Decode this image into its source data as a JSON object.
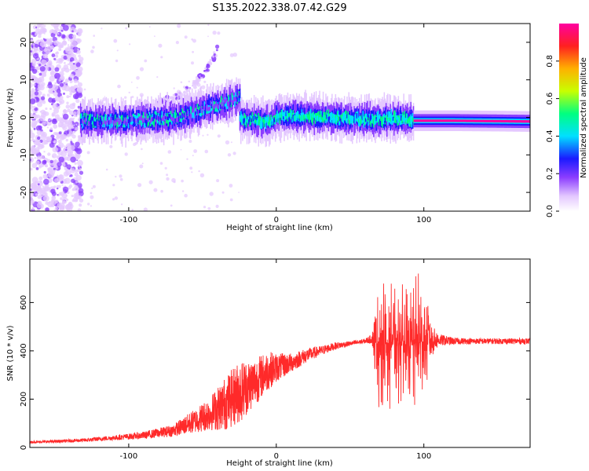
{
  "title": "S135.2022.338.07.42.G29",
  "colors": {
    "snr_line": "#ff2a2a",
    "frame": "#000000",
    "colormap": [
      "#ffffff",
      "#e4c8ff",
      "#8b3dff",
      "#1a1aff",
      "#00e0ff",
      "#00ff80",
      "#c8ff00",
      "#ffb000",
      "#ff2020",
      "#ff00a0"
    ]
  },
  "chart_data": [
    {
      "type": "heatmap",
      "panel": "top",
      "xlabel": "Height of straight line (km)",
      "ylabel": "Frequency (Hz)",
      "xlim": [
        -167,
        172
      ],
      "ylim": [
        -25,
        25
      ],
      "xticks": [
        -100,
        0,
        100
      ],
      "xtick_labels": [
        "-100",
        "0",
        "100"
      ],
      "yticks": [
        -20,
        -10,
        0,
        10,
        20
      ],
      "ytick_labels": [
        "-20",
        "-10",
        "0",
        "10",
        "20"
      ],
      "colorbar": {
        "label": "Normalized spectral amplitude",
        "range": [
          0,
          1
        ],
        "ticks": [
          0,
          0.2,
          0.4,
          0.6,
          0.8
        ],
        "tick_labels": [
          "0.0",
          "0.2",
          "0.4",
          "0.6",
          "0.8"
        ]
      },
      "ridge_segments": [
        {
          "x": [
            -133,
            -105,
            -90,
            -70,
            -55,
            -45,
            -38,
            -30,
            -25
          ],
          "y": [
            -1,
            -1,
            -0.5,
            -0.3,
            1.5,
            3,
            3.5,
            4.5,
            5.5
          ],
          "amplitude": 0.25
        },
        {
          "x": [
            -25,
            -15,
            -5,
            0,
            10,
            30,
            60,
            80,
            93
          ],
          "y": [
            -0.2,
            -0.8,
            -1.3,
            0.3,
            0.4,
            0.1,
            -0.5,
            -0.3,
            -0.6
          ],
          "amplitude": 0.45
        },
        {
          "x": [
            93,
            120,
            150,
            172
          ],
          "y": [
            -1.0,
            -1.0,
            -1.1,
            -1.2
          ],
          "amplitude": 0.95
        }
      ],
      "features": [
        {
          "name": "noise-column",
          "x_range": [
            -167,
            -132
          ],
          "amplitude": 0.08
        },
        {
          "name": "rising-branch",
          "x": [
            -85,
            -70,
            -55,
            -45,
            -40
          ],
          "y": [
            3,
            5,
            9,
            14,
            18
          ],
          "amplitude": 0.1
        }
      ]
    },
    {
      "type": "line",
      "panel": "bottom",
      "xlabel": "Height of straight line (km)",
      "ylabel": "SNR (10 * v/v)",
      "xlim": [
        -167,
        172
      ],
      "ylim": [
        0,
        780
      ],
      "xticks": [
        -100,
        0,
        100
      ],
      "xtick_labels": [
        "-100",
        "0",
        "100"
      ],
      "yticks": [
        0,
        200,
        400,
        600
      ],
      "ytick_labels": [
        "0",
        "200",
        "400",
        "600"
      ],
      "series": [
        {
          "x": [
            -167,
            -150,
            -130,
            -110,
            -90,
            -70,
            -55,
            -45,
            -35,
            -25,
            -15,
            -5,
            0,
            10,
            20,
            30,
            40,
            50,
            60,
            65,
            70,
            75,
            80,
            85,
            90,
            95,
            100,
            104,
            110,
            120,
            130,
            140,
            150,
            160,
            172
          ],
          "y": [
            22,
            25,
            30,
            40,
            50,
            70,
            110,
            140,
            180,
            230,
            270,
            320,
            330,
            350,
            380,
            400,
            420,
            430,
            440,
            450,
            420,
            430,
            440,
            440,
            430,
            430,
            440,
            440,
            445,
            440,
            440,
            440,
            440,
            440,
            440
          ],
          "noise": [
            5,
            6,
            8,
            10,
            15,
            25,
            50,
            70,
            110,
            130,
            100,
            80,
            60,
            40,
            30,
            20,
            15,
            10,
            10,
            20,
            300,
            300,
            250,
            280,
            280,
            300,
            300,
            80,
            25,
            15,
            12,
            12,
            12,
            12,
            12
          ]
        }
      ]
    }
  ]
}
